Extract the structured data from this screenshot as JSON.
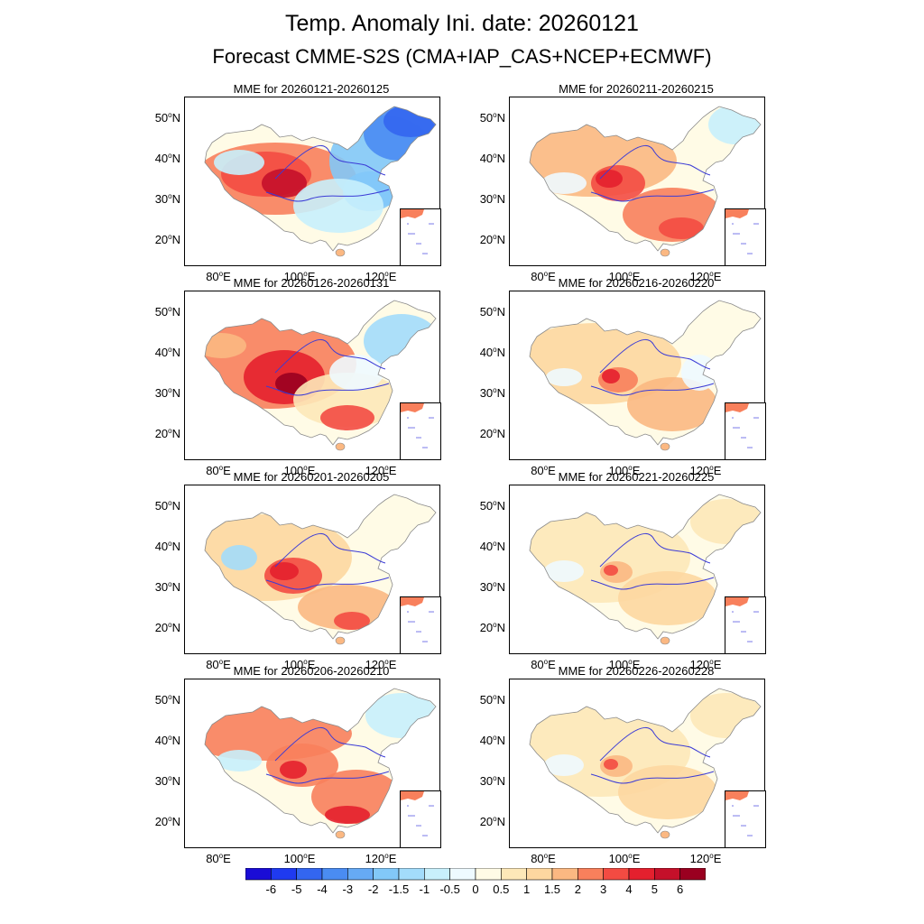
{
  "title": "Temp. Anomaly Ini. date: 20260121",
  "subtitle": "Forecast CMME-S2S (CMA+IAP_CAS+NCEP+ECMWF)",
  "lat_labels": [
    "50",
    "40",
    "30",
    "20"
  ],
  "lat_suffix": "N",
  "lon_labels": [
    "80",
    "100",
    "120"
  ],
  "lon_suffix": "E",
  "degree_mark": "o",
  "panels": [
    {
      "title": "MME for 20260121-20260125",
      "pattern": "warm-west-cold-east"
    },
    {
      "title": "MME for 20260126-20260131",
      "pattern": "strong-warm-west"
    },
    {
      "title": "MME for 20260201-20260205",
      "pattern": "moderate-warm"
    },
    {
      "title": "MME for 20260206-20260210",
      "pattern": "warm-north-and-south"
    },
    {
      "title": "MME for 20260211-20260215",
      "pattern": "warm-with-south-warm"
    },
    {
      "title": "MME for 20260216-20260220",
      "pattern": "mild-warm"
    },
    {
      "title": "MME for 20260221-20260225",
      "pattern": "weak-warm"
    },
    {
      "title": "MME for 20260226-20260228",
      "pattern": "weak-warm"
    }
  ],
  "colorbar": {
    "labels": [
      "-6",
      "-5",
      "-4",
      "-3",
      "-2",
      "-1.5",
      "-1",
      "-0.5",
      "0",
      "0.5",
      "1",
      "1.5",
      "2",
      "3",
      "4",
      "5",
      "6"
    ],
    "colors": [
      "#1a0cd6",
      "#1f3af0",
      "#3366f0",
      "#4a8cf2",
      "#66aaf5",
      "#82c8f8",
      "#a3dcfb",
      "#c8f0fc",
      "#eefaff",
      "#fffbe6",
      "#fde8b8",
      "#fdd7a0",
      "#fbb882",
      "#f8805c",
      "#f34b42",
      "#e4202e",
      "#c5102a",
      "#9a0020"
    ]
  }
}
